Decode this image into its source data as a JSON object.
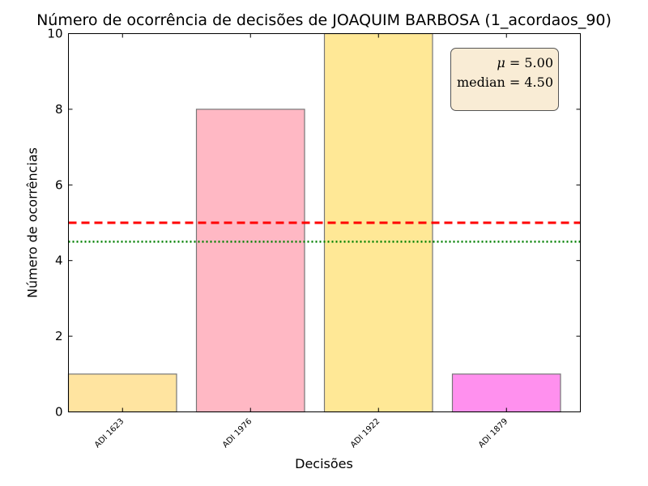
{
  "chart_data": {
    "type": "bar",
    "title": "Número de ocorrência de decisões de JOAQUIM BARBOSA (1_acordaos_90)",
    "xlabel": "Decisões",
    "ylabel": "Número de ocorrências",
    "categories": [
      "ADI 1623",
      "ADI 1976",
      "ADI 1922",
      "ADI 1879"
    ],
    "values": [
      1,
      8,
      10,
      1
    ],
    "bar_colors": [
      "#ffe4a0",
      "#ffb8c4",
      "#ffe896",
      "#ff90ee"
    ],
    "ylim": [
      0,
      10
    ],
    "yticks": [
      "0",
      "2",
      "4",
      "6",
      "8",
      "10"
    ],
    "grid": false,
    "reference_lines": [
      {
        "kind": "mean",
        "value": 5.0,
        "color": "#ff0000",
        "style": "dashed"
      },
      {
        "kind": "median",
        "value": 4.5,
        "color": "#008000",
        "style": "dotted"
      }
    ],
    "annotation": {
      "mean_symbol": "μ",
      "mean_value": "5.00",
      "median_label": "median",
      "median_value": "4.50",
      "placement": "top-right"
    }
  }
}
